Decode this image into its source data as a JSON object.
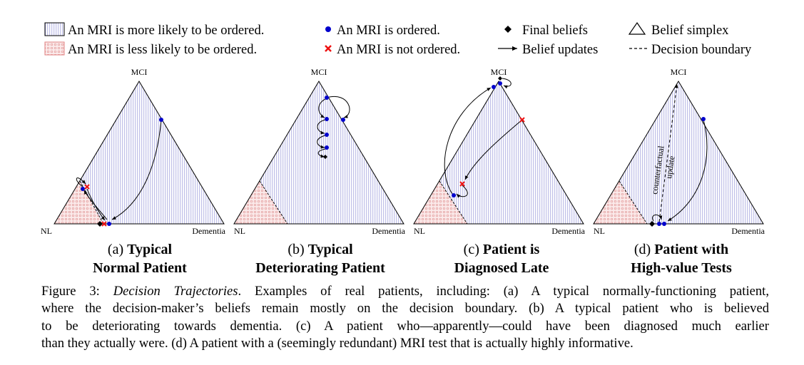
{
  "legend": {
    "more_likely": "An MRI is more likely to be ordered.",
    "less_likely": "An MRI is less likely to be ordered.",
    "ordered": "An MRI is ordered.",
    "not_ordered": "An MRI is not ordered.",
    "final_beliefs": "Final beliefs",
    "belief_updates": "Belief updates",
    "belief_simplex": "Belief simplex",
    "decision_boundary": "Decision boundary"
  },
  "vertex_labels": {
    "top": "MCI",
    "left": "NL",
    "right": "Dementia"
  },
  "panels": [
    {
      "letter": "(a)",
      "title_line1": "Typical",
      "title_line2": "Normal Patient"
    },
    {
      "letter": "(b)",
      "title_line1": "Typical",
      "title_line2": "Deteriorating Patient"
    },
    {
      "letter": "(c)",
      "title_line1": "Patient is",
      "title_line2": "Diagnosed Late"
    },
    {
      "letter": "(d)",
      "title_line1": "Patient with",
      "title_line2": "High-value Tests"
    }
  ],
  "annotation_d": {
    "line1": "counterfactual",
    "line2": "update"
  },
  "caption": {
    "lead": "Figure 3:",
    "title": "Decision Trajectories",
    "line1_rest": ". Examples of real patients, including: (a) A typical normally-functioning patient,",
    "line2": "where the decision-maker’s beliefs remain mostly on the decision boundary. (b) A typical patient who is believed",
    "line3": "to be deteriorating towards dementia. (c) A patient who—apparently—could have been diagnosed much earlier",
    "line4": "than they actually were. (d) A patient with a (seemingly redundant) MRI test that is actually highly informative."
  },
  "colors": {
    "hatch": "#9a9ad8",
    "dots": "#e8a8a8",
    "ordered": "#0000cc",
    "not_ordered": "#ee1111"
  }
}
